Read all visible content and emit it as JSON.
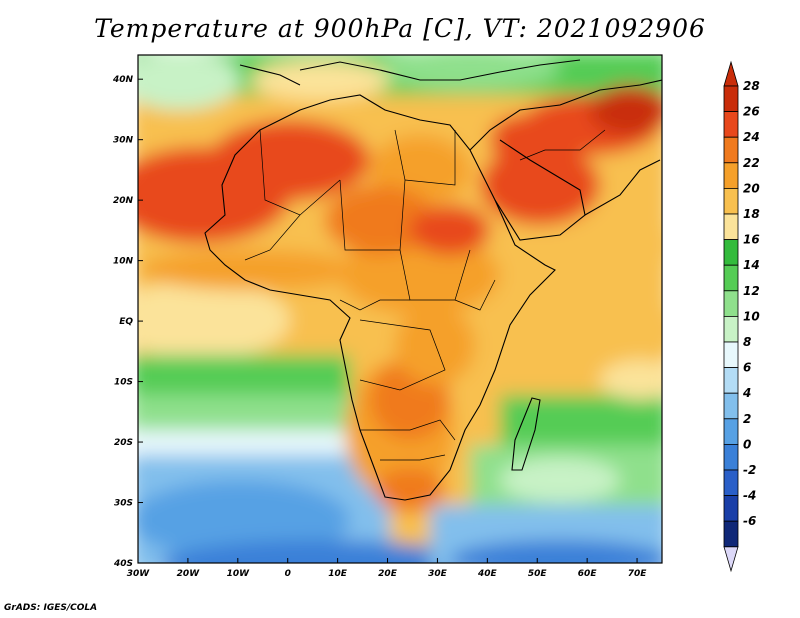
{
  "title": "Temperature at 900hPa [C], VT: 2021092906",
  "credit": "GrADS: IGES/COLA",
  "map": {
    "lon_range": [
      -30,
      75
    ],
    "lat_range": [
      -40,
      44
    ],
    "lat_ticks": [
      {
        "value": 40,
        "label": "40N"
      },
      {
        "value": 30,
        "label": "30N"
      },
      {
        "value": 20,
        "label": "20N"
      },
      {
        "value": 10,
        "label": "10N"
      },
      {
        "value": 0,
        "label": "EQ"
      },
      {
        "value": -10,
        "label": "10S"
      },
      {
        "value": -20,
        "label": "20S"
      },
      {
        "value": -30,
        "label": "30S"
      },
      {
        "value": -40,
        "label": "40S"
      }
    ],
    "lon_ticks": [
      {
        "value": -30,
        "label": "30W"
      },
      {
        "value": -20,
        "label": "20W"
      },
      {
        "value": -10,
        "label": "10W"
      },
      {
        "value": 0,
        "label": "0"
      },
      {
        "value": 10,
        "label": "10E"
      },
      {
        "value": 20,
        "label": "20E"
      },
      {
        "value": 30,
        "label": "30E"
      },
      {
        "value": 40,
        "label": "40E"
      },
      {
        "value": 50,
        "label": "50E"
      },
      {
        "value": 60,
        "label": "60E"
      },
      {
        "value": 70,
        "label": "70E"
      }
    ]
  },
  "colorbar": {
    "levels": [
      {
        "label": "28",
        "color": "#c92d0a"
      },
      {
        "label": "26",
        "color": "#e8481c"
      },
      {
        "label": "24",
        "color": "#f07a1e"
      },
      {
        "label": "22",
        "color": "#f5a02a"
      },
      {
        "label": "20",
        "color": "#f8c04f"
      },
      {
        "label": "18",
        "color": "#fbe39a"
      },
      {
        "label": "16",
        "color": "#33bb3c"
      },
      {
        "label": "14",
        "color": "#55cc55"
      },
      {
        "label": "12",
        "color": "#8fe08c"
      },
      {
        "label": "10",
        "color": "#c8f2c6"
      },
      {
        "label": "8",
        "color": "#e8f8fc"
      },
      {
        "label": "6",
        "color": "#b3dcf5"
      },
      {
        "label": "4",
        "color": "#82bfec"
      },
      {
        "label": "2",
        "color": "#57a1e4"
      },
      {
        "label": "0",
        "color": "#3a80d8"
      },
      {
        "label": "-2",
        "color": "#2a5fc8"
      },
      {
        "label": "-4",
        "color": "#1a3fa8"
      },
      {
        "label": "-6",
        "color": "#102878"
      }
    ],
    "over_color": "#c92d0a",
    "under_color": "#dcd8f8"
  }
}
